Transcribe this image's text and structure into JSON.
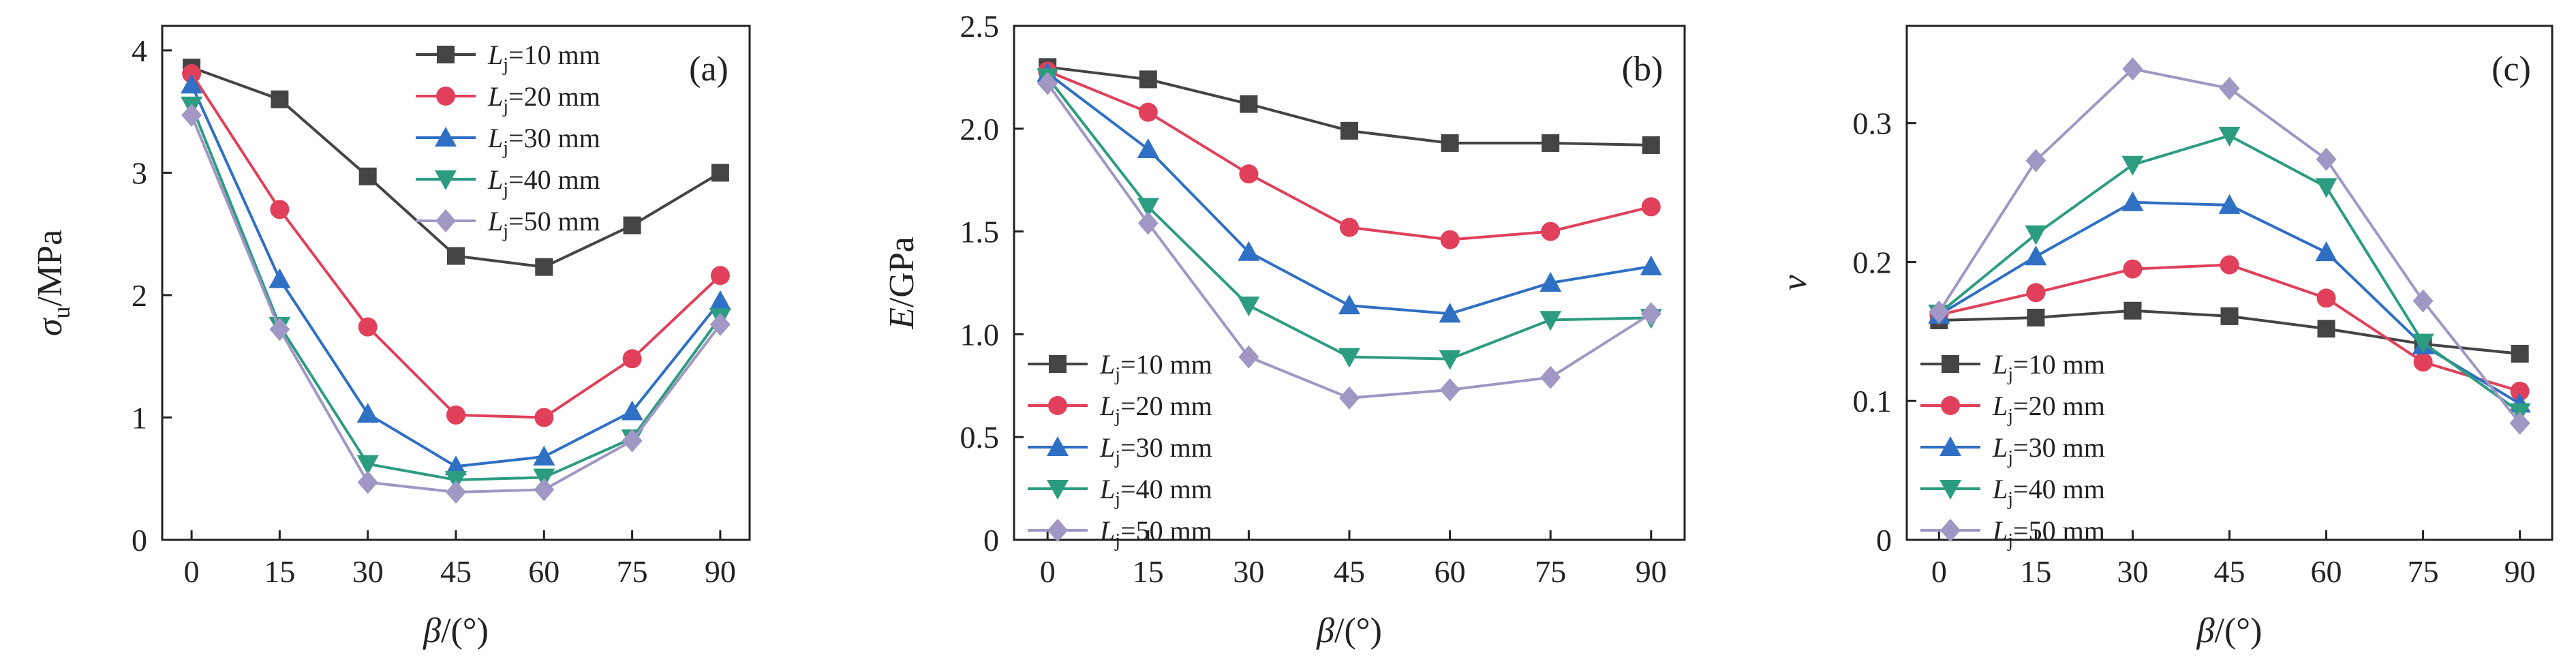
{
  "chart_data": [
    {
      "type": "line",
      "panel_label": "(a)",
      "ylabel": {
        "symbol": "σ",
        "sub": "u",
        "unit": "/MPa"
      },
      "xlabel": {
        "symbol": "β",
        "unit": "/(°)"
      },
      "x": [
        0,
        15,
        30,
        45,
        60,
        75,
        90
      ],
      "xlim": [
        -5,
        95
      ],
      "ylim": [
        0,
        4.2
      ],
      "yticks": [
        0,
        1,
        2,
        3,
        4
      ],
      "ytick_labels": [
        "0",
        "1",
        "2",
        "3",
        "4"
      ],
      "legend_position": "top-center",
      "series": [
        {
          "label": {
            "symbol": "L",
            "sub": "j",
            "value": "=10 mm"
          },
          "color": "#444444",
          "marker": "square",
          "values": [
            3.86,
            3.6,
            2.97,
            2.32,
            2.23,
            2.57,
            3.0
          ]
        },
        {
          "label": {
            "symbol": "L",
            "sub": "j",
            "value": "=20 mm"
          },
          "color": "#e0405a",
          "marker": "circle",
          "values": [
            3.81,
            2.7,
            1.74,
            1.02,
            1.0,
            1.48,
            2.16
          ]
        },
        {
          "label": {
            "symbol": "L",
            "sub": "j",
            "value": "=30 mm"
          },
          "color": "#2f6fc4",
          "marker": "triangle-up",
          "values": [
            3.72,
            2.13,
            1.03,
            0.6,
            0.68,
            1.05,
            1.95
          ]
        },
        {
          "label": {
            "symbol": "L",
            "sub": "j",
            "value": "=40 mm"
          },
          "color": "#2c9c80",
          "marker": "triangle-down",
          "values": [
            3.55,
            1.75,
            0.62,
            0.49,
            0.51,
            0.83,
            1.82
          ]
        },
        {
          "label": {
            "symbol": "L",
            "sub": "j",
            "value": "=50 mm"
          },
          "color": "#a197c4",
          "marker": "diamond",
          "values": [
            3.47,
            1.72,
            0.47,
            0.39,
            0.41,
            0.81,
            1.76
          ]
        }
      ]
    },
    {
      "type": "line",
      "panel_label": "(b)",
      "ylabel": {
        "symbol": "E",
        "sub": "",
        "unit": "/GPa"
      },
      "xlabel": {
        "symbol": "β",
        "unit": "/(°)"
      },
      "x": [
        0,
        15,
        30,
        45,
        60,
        75,
        90
      ],
      "xlim": [
        -5,
        95
      ],
      "ylim": [
        0,
        2.5
      ],
      "yticks": [
        0,
        0.5,
        1.0,
        1.5,
        2.0,
        2.5
      ],
      "ytick_labels": [
        "0",
        "0.5",
        "1.0",
        "1.5",
        "2.0",
        "2.5"
      ],
      "legend_position": "bottom-left",
      "series": [
        {
          "label": {
            "symbol": "L",
            "sub": "j",
            "value": "=10 mm"
          },
          "color": "#444444",
          "marker": "square",
          "values": [
            2.3,
            2.24,
            2.12,
            1.99,
            1.93,
            1.93,
            1.92
          ]
        },
        {
          "label": {
            "symbol": "L",
            "sub": "j",
            "value": "=20 mm"
          },
          "color": "#e0405a",
          "marker": "circle",
          "values": [
            2.28,
            2.08,
            1.78,
            1.52,
            1.46,
            1.5,
            1.62
          ]
        },
        {
          "label": {
            "symbol": "L",
            "sub": "j",
            "value": "=30 mm"
          },
          "color": "#2f6fc4",
          "marker": "triangle-up",
          "values": [
            2.27,
            1.9,
            1.4,
            1.14,
            1.1,
            1.25,
            1.33
          ]
        },
        {
          "label": {
            "symbol": "L",
            "sub": "j",
            "value": "=40 mm"
          },
          "color": "#2c9c80",
          "marker": "triangle-down",
          "values": [
            2.25,
            1.62,
            1.14,
            0.89,
            0.88,
            1.07,
            1.08
          ]
        },
        {
          "label": {
            "symbol": "L",
            "sub": "j",
            "value": "=50 mm"
          },
          "color": "#a197c4",
          "marker": "diamond",
          "values": [
            2.22,
            1.54,
            0.89,
            0.69,
            0.73,
            0.79,
            1.1
          ]
        }
      ]
    },
    {
      "type": "line",
      "panel_label": "(c)",
      "ylabel": {
        "symbol": "ν",
        "sub": "",
        "unit": ""
      },
      "xlabel": {
        "symbol": "β",
        "unit": "/(°)"
      },
      "x": [
        0,
        15,
        30,
        45,
        60,
        75,
        90
      ],
      "xlim": [
        -5,
        95
      ],
      "ylim": [
        0,
        0.37
      ],
      "yticks": [
        0,
        0.1,
        0.2,
        0.3
      ],
      "ytick_labels": [
        "0",
        "0.1",
        "0.2",
        "0.3"
      ],
      "legend_position": "bottom-left",
      "series": [
        {
          "label": {
            "symbol": "L",
            "sub": "j",
            "value": "=10 mm"
          },
          "color": "#444444",
          "marker": "square",
          "values": [
            0.158,
            0.16,
            0.165,
            0.161,
            0.152,
            0.141,
            0.134
          ]
        },
        {
          "label": {
            "symbol": "L",
            "sub": "j",
            "value": "=20 mm"
          },
          "color": "#e0405a",
          "marker": "circle",
          "values": [
            0.162,
            0.178,
            0.195,
            0.198,
            0.174,
            0.128,
            0.107
          ]
        },
        {
          "label": {
            "symbol": "L",
            "sub": "j",
            "value": "=30 mm"
          },
          "color": "#2f6fc4",
          "marker": "triangle-up",
          "values": [
            0.162,
            0.204,
            0.243,
            0.241,
            0.207,
            0.14,
            0.098
          ]
        },
        {
          "label": {
            "symbol": "L",
            "sub": "j",
            "value": "=40 mm"
          },
          "color": "#2c9c80",
          "marker": "triangle-down",
          "values": [
            0.163,
            0.22,
            0.27,
            0.291,
            0.254,
            0.142,
            0.092
          ]
        },
        {
          "label": {
            "symbol": "L",
            "sub": "j",
            "value": "=50 mm"
          },
          "color": "#a197c4",
          "marker": "diamond",
          "values": [
            0.164,
            0.273,
            0.339,
            0.325,
            0.274,
            0.172,
            0.084
          ]
        }
      ]
    }
  ]
}
